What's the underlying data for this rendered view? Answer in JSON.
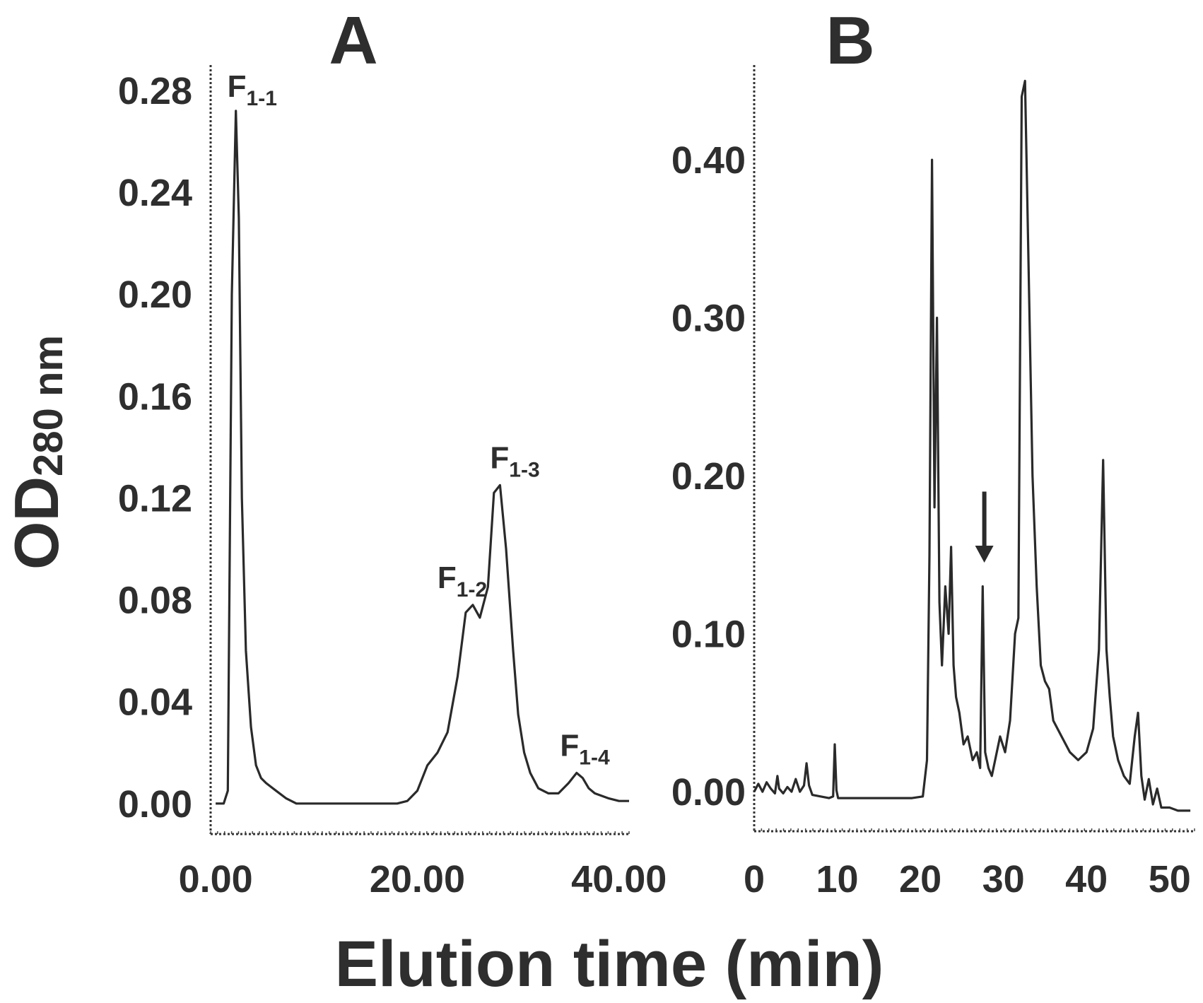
{
  "figure": {
    "ylabel": "OD",
    "ylabel_sub": "280 nm",
    "xlabel": "Elution time (min)"
  },
  "chart_data": [
    {
      "type": "line",
      "panel_label": "A",
      "title": "",
      "xlabel": "Elution time (min)",
      "ylabel": "OD280 nm",
      "xlim": [
        -0.5,
        41
      ],
      "ylim": [
        -0.012,
        0.29
      ],
      "x_ticks": [
        0,
        20,
        40
      ],
      "x_tick_labels": [
        "0.00",
        "20.00",
        "40.00"
      ],
      "y_ticks": [
        0.0,
        0.04,
        0.08,
        0.12,
        0.16,
        0.2,
        0.24,
        0.28
      ],
      "y_tick_labels": [
        "0.00",
        "0.04",
        "0.08",
        "0.12",
        "0.16",
        "0.20",
        "0.24",
        "0.28"
      ],
      "grid": false,
      "series": [
        {
          "x": [
            0,
            0.8,
            1.2,
            1.6,
            2.0,
            2.3,
            2.6,
            3.0,
            3.5,
            4.0,
            4.5,
            5.0,
            6.0,
            7.0,
            8.0,
            10.0,
            12.0,
            14.0,
            16.0,
            18.0,
            19.0,
            20.0,
            21.0,
            22.0,
            23.0,
            24.0,
            24.8,
            25.5,
            26.2,
            27.0,
            27.6,
            28.2,
            28.8,
            29.5,
            30.0,
            30.6,
            31.2,
            32.0,
            33.0,
            34.0,
            35.0,
            35.8,
            36.4,
            37.0,
            37.6,
            38.3,
            39.0,
            40.0,
            41.0
          ],
          "y": [
            0.0,
            0.0,
            0.005,
            0.2,
            0.272,
            0.23,
            0.12,
            0.06,
            0.03,
            0.015,
            0.01,
            0.008,
            0.005,
            0.002,
            0.0,
            0.0,
            0.0,
            0.0,
            0.0,
            0.0,
            0.001,
            0.005,
            0.015,
            0.02,
            0.028,
            0.05,
            0.075,
            0.078,
            0.073,
            0.085,
            0.122,
            0.125,
            0.1,
            0.06,
            0.035,
            0.02,
            0.012,
            0.006,
            0.004,
            0.004,
            0.008,
            0.012,
            0.01,
            0.006,
            0.004,
            0.003,
            0.002,
            0.001,
            0.001
          ]
        }
      ],
      "annotations": [
        {
          "main": "F",
          "sub": "1-1",
          "x": 2.0,
          "y": 0.272
        },
        {
          "main": "F",
          "sub": "1-2",
          "x": 25.5,
          "y": 0.078
        },
        {
          "main": "F",
          "sub": "1-3",
          "x": 28.2,
          "y": 0.125
        },
        {
          "main": "F",
          "sub": "1-4",
          "x": 36.4,
          "y": 0.012
        }
      ]
    },
    {
      "type": "line",
      "panel_label": "B",
      "title": "",
      "xlabel": "Elution time (min)",
      "ylabel": "OD280 nm",
      "xlim": [
        0,
        53
      ],
      "ylim": [
        -0.025,
        0.46
      ],
      "x_ticks": [
        0,
        10,
        20,
        30,
        40,
        50
      ],
      "x_tick_labels": [
        "0",
        "10",
        "20",
        "30",
        "40",
        "50"
      ],
      "y_ticks": [
        0.0,
        0.1,
        0.2,
        0.3,
        0.4
      ],
      "y_tick_labels": [
        "0.00",
        "0.10",
        "0.20",
        "0.30",
        "0.40"
      ],
      "grid": false,
      "arrow_at_x": 27.7,
      "series": [
        {
          "x": [
            0,
            0.5,
            1.0,
            1.5,
            2.0,
            2.5,
            2.8,
            3.0,
            3.5,
            4.0,
            4.5,
            5.0,
            5.5,
            6.0,
            6.3,
            6.6,
            7.0,
            8.0,
            9.0,
            9.5,
            9.7,
            9.9,
            10.1,
            11.0,
            13.0,
            15.0,
            17.0,
            19.0,
            20.3,
            20.8,
            21.1,
            21.4,
            21.7,
            22.0,
            22.3,
            22.6,
            23.0,
            23.4,
            23.7,
            24.0,
            24.3,
            24.7,
            25.2,
            25.7,
            26.3,
            26.8,
            27.2,
            27.5,
            27.8,
            28.2,
            28.6,
            29.0,
            29.6,
            30.2,
            30.8,
            31.4,
            31.8,
            32.2,
            32.6,
            33.0,
            33.5,
            34.0,
            34.5,
            35.0,
            35.5,
            36.0,
            37.0,
            38.0,
            39.0,
            40.0,
            40.8,
            41.5,
            42.0,
            42.4,
            42.8,
            43.2,
            43.8,
            44.5,
            45.2,
            45.8,
            46.2,
            46.6,
            47.0,
            47.5,
            48.0,
            48.5,
            49.0,
            50.0,
            51.0,
            52.5
          ],
          "y": [
            0.0,
            0.005,
            0.0,
            0.006,
            0.002,
            -0.001,
            0.01,
            0.002,
            -0.001,
            0.003,
            0.0,
            0.008,
            0.0,
            0.004,
            0.018,
            0.004,
            -0.002,
            -0.003,
            -0.004,
            -0.003,
            0.03,
            0.001,
            -0.004,
            -0.004,
            -0.004,
            -0.004,
            -0.004,
            -0.004,
            -0.003,
            0.02,
            0.15,
            0.4,
            0.18,
            0.3,
            0.12,
            0.08,
            0.13,
            0.1,
            0.155,
            0.08,
            0.06,
            0.05,
            0.03,
            0.035,
            0.02,
            0.025,
            0.015,
            0.13,
            0.025,
            0.015,
            0.01,
            0.02,
            0.035,
            0.025,
            0.045,
            0.1,
            0.11,
            0.44,
            0.45,
            0.34,
            0.2,
            0.13,
            0.08,
            0.07,
            0.065,
            0.045,
            0.035,
            0.025,
            0.02,
            0.025,
            0.04,
            0.09,
            0.21,
            0.09,
            0.06,
            0.035,
            0.02,
            0.01,
            0.005,
            0.035,
            0.05,
            0.01,
            -0.005,
            0.008,
            -0.008,
            0.002,
            -0.01,
            -0.01,
            -0.012,
            -0.012
          ]
        }
      ]
    }
  ]
}
